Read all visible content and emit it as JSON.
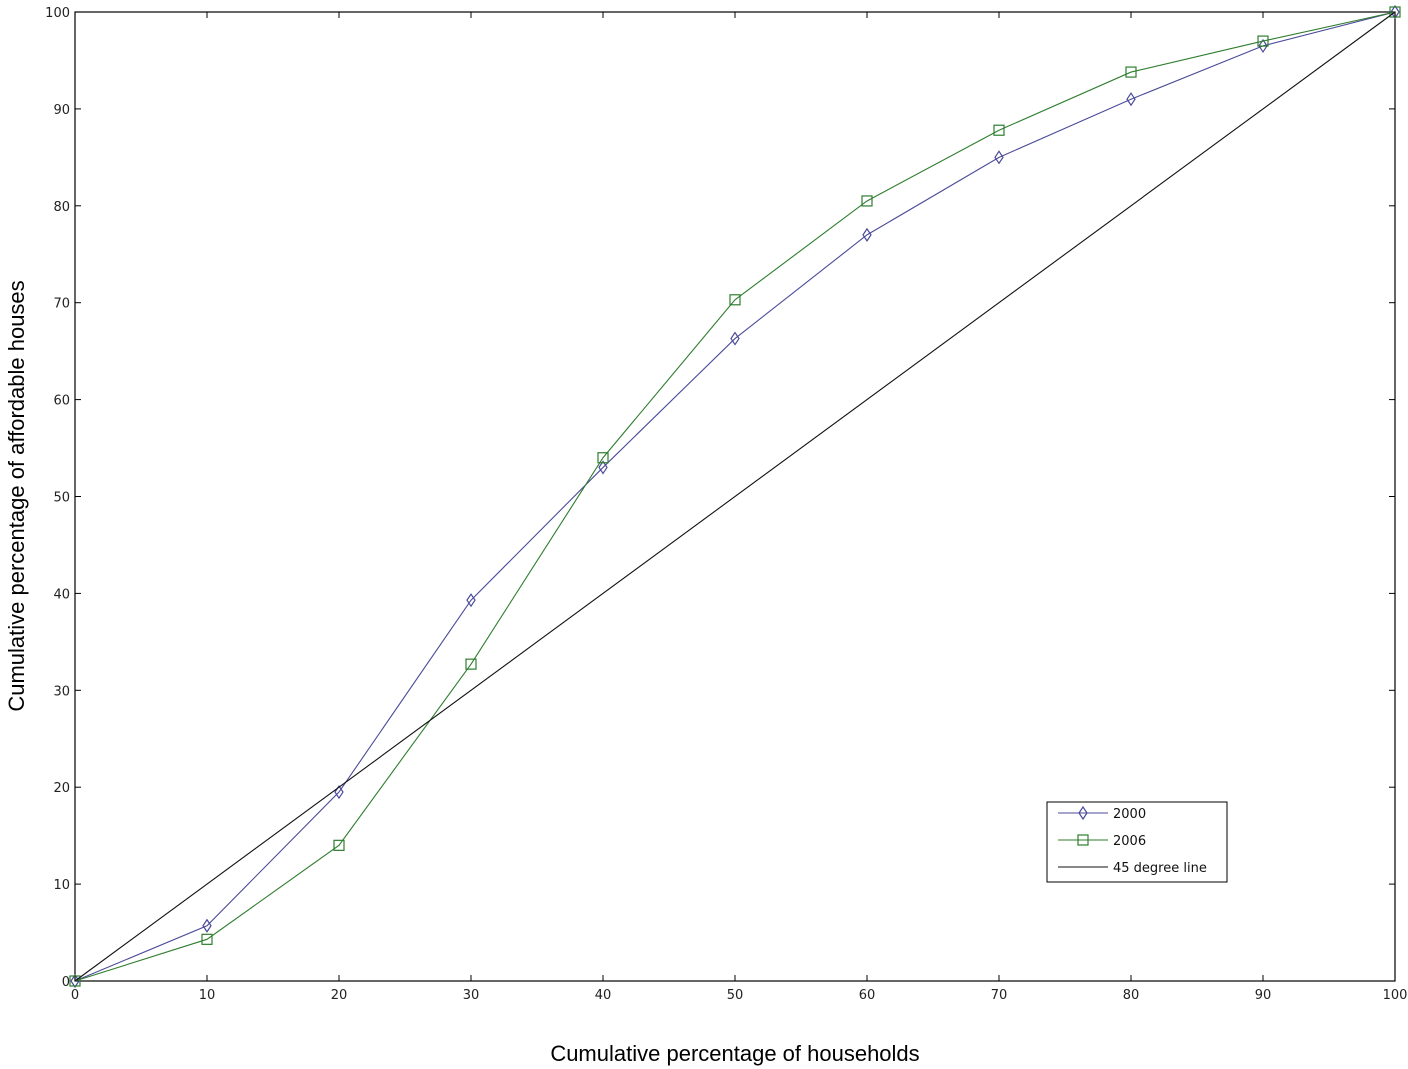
{
  "chart_data": {
    "type": "line",
    "title": "",
    "xlabel": "Cumulative percentage of households",
    "ylabel": "Cumulative percentage of affordable houses",
    "xlim": [
      0,
      100
    ],
    "ylim": [
      0,
      100
    ],
    "xticks": [
      0,
      10,
      20,
      30,
      40,
      50,
      60,
      70,
      80,
      90,
      100
    ],
    "yticks": [
      0,
      10,
      20,
      30,
      40,
      50,
      60,
      70,
      80,
      90,
      100
    ],
    "grid": false,
    "legend_position": "bottom-right",
    "series": [
      {
        "name": "2000",
        "marker": "diamond",
        "color": "#4a4a9a",
        "x": [
          0,
          10,
          20,
          30,
          40,
          50,
          60,
          70,
          80,
          90,
          100
        ],
        "y": [
          0,
          5.7,
          19.5,
          39.3,
          53,
          66.3,
          77,
          85,
          91,
          96.5,
          100
        ]
      },
      {
        "name": "2006",
        "marker": "square",
        "color": "#2e7d2e",
        "x": [
          0,
          10,
          20,
          30,
          40,
          50,
          60,
          70,
          80,
          90,
          100
        ],
        "y": [
          0,
          4.3,
          14,
          32.7,
          54,
          70.3,
          80.5,
          87.8,
          93.8,
          97,
          100
        ]
      },
      {
        "name": "45 degree line",
        "marker": "none",
        "color": "#111111",
        "x": [
          0,
          100
        ],
        "y": [
          0,
          100
        ]
      }
    ]
  }
}
